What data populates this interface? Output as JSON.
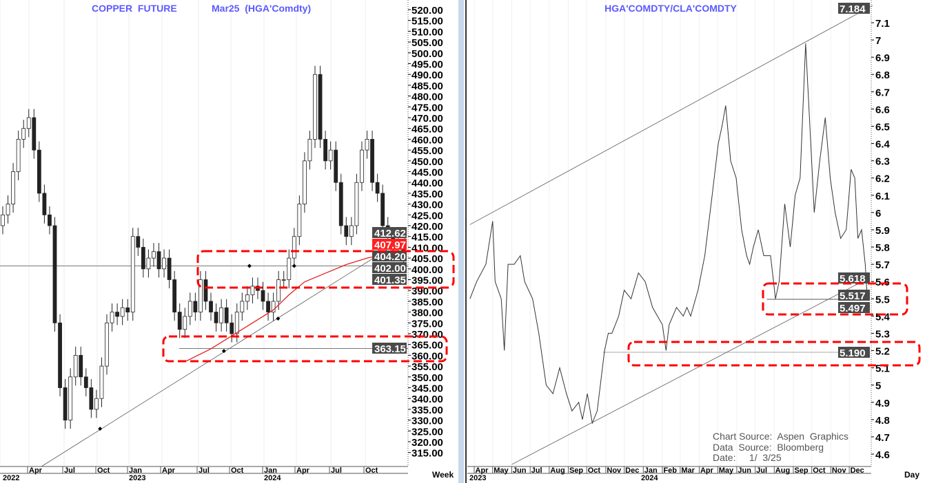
{
  "chart_data": [
    {
      "type": "candlestick",
      "title": "COPPER  FUTURE",
      "subtitle": "Mar25  (HGA'Comdty)",
      "periodicity": "Week",
      "ylim": [
        315,
        520
      ],
      "y_ticks": [
        "520.00",
        "515.00",
        "510.00",
        "505.00",
        "500.00",
        "495.00",
        "490.00",
        "485.00",
        "480.00",
        "475.00",
        "470.00",
        "465.00",
        "460.00",
        "455.00",
        "450.00",
        "445.00",
        "440.00",
        "435.00",
        "430.00",
        "425.00",
        "420.00",
        "415.00",
        "410.00",
        "405.00",
        "400.00",
        "395.00",
        "390.00",
        "385.00",
        "380.00",
        "375.00",
        "370.00",
        "365.00",
        "360.00",
        "355.00",
        "350.00",
        "345.00",
        "340.00",
        "335.00",
        "330.00",
        "325.00",
        "320.00",
        "315.00"
      ],
      "x_month_labels": [
        "Apr",
        "Jul",
        "Oct",
        "Jan",
        "Apr",
        "Jul",
        "Oct",
        "Jan",
        "Apr",
        "Jul",
        "Oct"
      ],
      "x_year_labels": [
        "2022",
        "2023",
        "2024"
      ],
      "series_start_open": 420,
      "biweekly_closes": [
        425,
        430,
        445,
        460,
        465,
        470,
        455,
        435,
        425,
        420,
        375,
        345,
        330,
        350,
        360,
        350,
        345,
        335,
        340,
        355,
        375,
        380,
        378,
        382,
        380,
        415,
        410,
        400,
        405,
        408,
        400,
        405,
        395,
        380,
        372,
        378,
        385,
        380,
        395,
        385,
        380,
        375,
        382,
        375,
        370,
        380,
        385,
        388,
        392,
        390,
        385,
        380,
        385,
        395,
        395,
        405,
        415,
        430,
        450,
        460,
        490,
        460,
        450,
        455,
        440,
        420,
        415,
        420,
        440,
        455,
        460,
        440,
        435,
        420,
        415,
        412,
        410,
        404
      ],
      "moving_average": [
        [
          35,
          357
        ],
        [
          40,
          363
        ],
        [
          44,
          369
        ],
        [
          48,
          375
        ],
        [
          52,
          381
        ],
        [
          55,
          388
        ],
        [
          58,
          394
        ],
        [
          62,
          398
        ],
        [
          66,
          402
        ],
        [
          70,
          405
        ],
        [
          74,
          407
        ],
        [
          77,
          408
        ]
      ],
      "trendline": {
        "from": [
          7.4,
          308.5
        ],
        "to": [
          77.6,
          414.6
        ]
      },
      "horizontal_levels": [
        401.35,
        363.15
      ],
      "markers": [
        [
          18.7,
          326
        ],
        [
          42.5,
          362
        ],
        [
          47.4,
          401.35
        ],
        [
          52.9,
          377
        ],
        [
          56,
          401.35
        ],
        [
          72.6,
          401
        ]
      ],
      "highlighted_levels": [
        {
          "label": "412.62",
          "value": 412.62,
          "color": "#4a4a4a"
        },
        {
          "label": "407.97",
          "value": 407.97,
          "color": "#ff2020"
        },
        {
          "label": "404.20",
          "value": 404.2,
          "color": "#4a4a4a"
        },
        {
          "label": "402.00",
          "value": 402.0,
          "color": "#4a4a4a"
        },
        {
          "label": "401.35",
          "value": 401.35,
          "color": "#4a4a4a"
        },
        {
          "label": "363.15",
          "value": 363.15,
          "color": "#4a4a4a"
        }
      ],
      "annotation_color": "#ff0000"
    },
    {
      "type": "line",
      "title": "HGA'COMDTY/CLA'COMDTY",
      "periodicity": "Day",
      "ylim": [
        4.6,
        7.1
      ],
      "y_ticks": [
        "7.1",
        "7",
        "6.9",
        "6.8",
        "6.7",
        "6.6",
        "6.5",
        "6.4",
        "6.3",
        "6.2",
        "6.1",
        "6",
        "5.9",
        "5.8",
        "5.7",
        "5.6",
        "5.5",
        "5.4",
        "5.3",
        "5.2",
        "5.1",
        "5",
        "4.9",
        "4.8",
        "4.7",
        "4.6"
      ],
      "x_month_labels": [
        "Apr",
        "May",
        "Jun",
        "Jul",
        "Aug",
        "Sep",
        "Oct",
        "Nov",
        "Dec",
        "Jan",
        "Feb",
        "Mar",
        "Apr",
        "May",
        "Jun",
        "Jul",
        "Aug",
        "Sep",
        "Oct",
        "Nov",
        "Dec"
      ],
      "x_year_labels": [
        "2023",
        "2024"
      ],
      "points": [
        [
          "2023-03-25",
          5.5
        ],
        [
          "2023-04-05",
          5.6
        ],
        [
          "2023-04-20",
          5.7
        ],
        [
          "2023-05-01",
          5.95
        ],
        [
          "2023-05-05",
          5.6
        ],
        [
          "2023-05-15",
          5.5
        ],
        [
          "2023-05-20",
          5.2
        ],
        [
          "2023-05-26",
          5.7
        ],
        [
          "2023-06-05",
          5.7
        ],
        [
          "2023-06-15",
          5.75
        ],
        [
          "2023-06-22",
          5.6
        ],
        [
          "2023-07-05",
          5.5
        ],
        [
          "2023-07-15",
          5.3
        ],
        [
          "2023-07-27",
          5.0
        ],
        [
          "2023-08-07",
          4.95
        ],
        [
          "2023-08-18",
          5.1
        ],
        [
          "2023-08-29",
          4.95
        ],
        [
          "2023-09-07",
          4.85
        ],
        [
          "2023-09-18",
          4.9
        ],
        [
          "2023-09-24",
          4.8
        ],
        [
          "2023-10-02",
          4.95
        ],
        [
          "2023-10-10",
          4.78
        ],
        [
          "2023-10-18",
          4.85
        ],
        [
          "2023-10-30",
          5.2
        ],
        [
          "2023-11-05",
          5.3
        ],
        [
          "2023-11-11",
          5.3
        ],
        [
          "2023-11-22",
          5.4
        ],
        [
          "2023-12-01",
          5.55
        ],
        [
          "2023-12-12",
          5.5
        ],
        [
          "2023-12-24",
          5.65
        ],
        [
          "2024-01-04",
          5.6
        ],
        [
          "2024-01-16",
          5.45
        ],
        [
          "2024-01-24",
          5.4
        ],
        [
          "2024-02-01",
          5.35
        ],
        [
          "2024-02-07",
          5.2
        ],
        [
          "2024-02-12",
          5.35
        ],
        [
          "2024-02-24",
          5.45
        ],
        [
          "2024-03-06",
          5.4
        ],
        [
          "2024-03-12",
          5.45
        ],
        [
          "2024-03-18",
          5.4
        ],
        [
          "2024-03-30",
          5.55
        ],
        [
          "2024-04-10",
          5.75
        ],
        [
          "2024-04-22",
          6.1
        ],
        [
          "2024-05-02",
          6.4
        ],
        [
          "2024-05-08",
          6.5
        ],
        [
          "2024-05-14",
          6.62
        ],
        [
          "2024-05-22",
          6.3
        ],
        [
          "2024-05-31",
          6.2
        ],
        [
          "2024-06-09",
          5.9
        ],
        [
          "2024-06-17",
          5.75
        ],
        [
          "2024-06-22",
          5.7
        ],
        [
          "2024-06-28",
          5.8
        ],
        [
          "2024-07-06",
          5.9
        ],
        [
          "2024-07-15",
          5.75
        ],
        [
          "2024-07-26",
          5.75
        ],
        [
          "2024-08-03",
          5.5
        ],
        [
          "2024-08-09",
          5.6
        ],
        [
          "2024-08-18",
          6.05
        ],
        [
          "2024-08-27",
          5.8
        ],
        [
          "2024-09-04",
          6.1
        ],
        [
          "2024-09-12",
          6.2
        ],
        [
          "2024-09-21",
          6.98
        ],
        [
          "2024-09-28",
          6.5
        ],
        [
          "2024-10-05",
          6.0
        ],
        [
          "2024-10-14",
          6.3
        ],
        [
          "2024-10-23",
          6.55
        ],
        [
          "2024-10-31",
          6.2
        ],
        [
          "2024-11-08",
          6.0
        ],
        [
          "2024-11-17",
          5.85
        ],
        [
          "2024-11-26",
          5.9
        ],
        [
          "2024-12-04",
          6.25
        ],
        [
          "2024-12-10",
          6.2
        ],
        [
          "2024-12-15",
          5.85
        ],
        [
          "2024-12-21",
          5.9
        ],
        [
          "2024-12-27",
          5.7
        ],
        [
          "2024-12-30",
          5.52
        ],
        [
          "2025-01-02",
          5.5
        ]
      ],
      "channel_upper": {
        "from": [
          "2023-03-25",
          5.93
        ],
        "to": [
          "2025-01-08",
          7.2
        ]
      },
      "channel_lower": {
        "from": [
          "2023-06-01",
          4.54
        ],
        "to": [
          "2025-01-02",
          5.62
        ]
      },
      "horizontal_levels": [
        {
          "value": 5.497,
          "from": "2024-07-20",
          "style": "solid"
        },
        {
          "value": 5.19,
          "from": "2023-10-28",
          "style": "dotted"
        }
      ],
      "highlighted_levels": [
        {
          "label": "7.184",
          "value": 7.184,
          "color": "#4a4a4a"
        },
        {
          "label": "5.618",
          "value": 5.618,
          "color": "#4a4a4a"
        },
        {
          "label": "5.517",
          "value": 5.517,
          "color": "#4a4a4a"
        },
        {
          "label": "5.497",
          "value": 5.497,
          "color": "#4a4a4a"
        },
        {
          "label": "5.190",
          "value": 5.19,
          "color": "#4a4a4a"
        }
      ],
      "annotation_color": "#ff0000"
    }
  ],
  "source": {
    "chart_source": "Chart Source:  Aspen  Graphics",
    "data_source": "Data  Source:  Bloomberg",
    "date": "Date:     1/  3/25"
  }
}
